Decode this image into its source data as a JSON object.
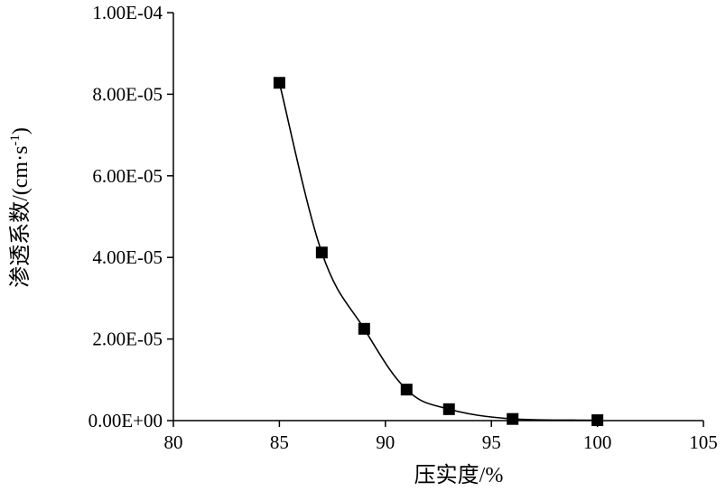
{
  "chart_data": {
    "type": "scatter",
    "xlabel": "压实度/%",
    "ylabel": "渗透系数/(cm·s",
    "ylabel_sup": "-1",
    "ylabel_close": ")",
    "xlim": [
      80,
      105
    ],
    "ylim": [
      0,
      0.0001
    ],
    "x_ticks": [
      "80",
      "85",
      "90",
      "95",
      "100",
      "105"
    ],
    "y_ticks": [
      "0.00E+00",
      "2.00E-05",
      "4.00E-05",
      "6.00E-05",
      "8.00E-05",
      "1.00E-04"
    ],
    "smooth_line": true,
    "marker": "square",
    "grid": false,
    "series": [
      {
        "x": [
          85,
          87,
          89,
          91,
          93,
          96,
          100
        ],
        "y": [
          8.28e-05,
          4.12e-05,
          2.25e-05,
          7.6e-06,
          2.8e-06,
          4e-07,
          1e-07
        ]
      }
    ]
  }
}
